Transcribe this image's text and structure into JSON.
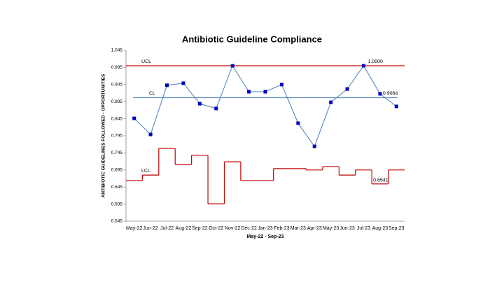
{
  "chart_data": {
    "type": "control",
    "title": "Antibiotic Guideline Compliance",
    "x_label": "May-22 - Sep-23",
    "y_label": "ANTIBIOTIC GUIDELINES FOLLOWED - OPPORTUNITIES",
    "categories": [
      "May-22",
      "Jun-22",
      "Jul-22",
      "Aug-22",
      "Sep-22",
      "Oct-22",
      "Nov-22",
      "Dec-22",
      "Jan-23",
      "Feb-23",
      "Mar-23",
      "Apr-23",
      "May-23",
      "Jun-23",
      "Jul-23",
      "Aug-23",
      "Sep-23"
    ],
    "series": [
      {
        "color": "#4a7ebb",
        "marker_color": "#0000c0",
        "values": [
          0.846,
          0.799,
          0.943,
          0.949,
          0.889,
          0.875,
          1.0,
          0.924,
          0.924,
          0.945,
          0.832,
          0.764,
          0.893,
          0.932,
          1.0,
          0.918,
          0.881
        ]
      }
    ],
    "ucl": {
      "name": "UCL",
      "value": 1,
      "value_label": "1.0000",
      "color": "#c00000"
    },
    "cl": {
      "name": "CL",
      "value": 0.9064,
      "color": "#4a7ebb"
    },
    "lcl": {
      "name": "LCL",
      "color": "#c00000",
      "values": [
        0.664,
        0.68,
        0.758,
        0.711,
        0.738,
        0.596,
        0.719,
        0.664,
        0.664,
        0.699,
        0.699,
        0.695,
        0.705,
        0.68,
        0.695,
        0.6541,
        0.695
      ],
      "value_labels": [
        null,
        null,
        null,
        null,
        null,
        null,
        null,
        null,
        null,
        null,
        null,
        null,
        null,
        null,
        null,
        "0.6541",
        null
      ]
    },
    "ylim": [
      0.545,
      1.045
    ],
    "yticks": [
      0.545,
      0.595,
      0.645,
      0.695,
      0.745,
      0.795,
      0.845,
      0.895,
      0.945,
      0.995,
      1.045
    ]
  }
}
